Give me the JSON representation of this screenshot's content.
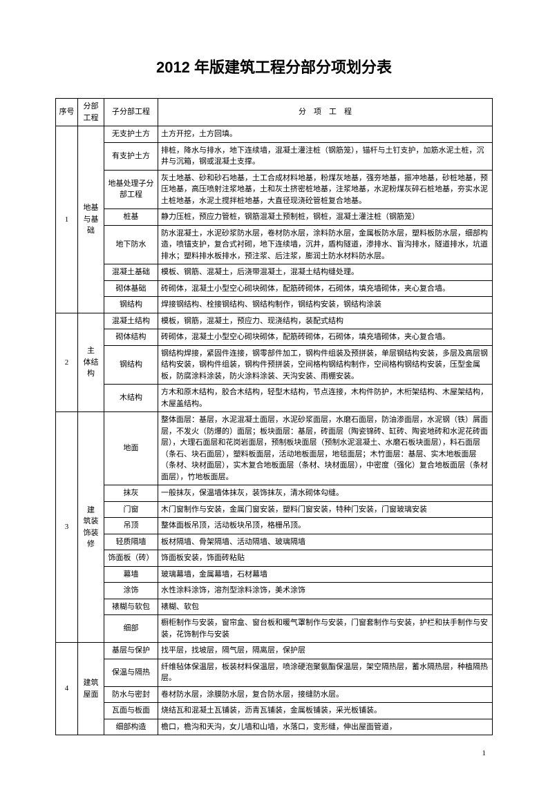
{
  "title": "2012 年版建筑工程分部分项划分表",
  "headers": {
    "seq": "序号",
    "division": "分部工程",
    "sub": "子分部工程",
    "item": "分　项　工　程"
  },
  "sections": [
    {
      "seq": "1",
      "division": "地基与基础",
      "rows": [
        {
          "sub": "无支护土方",
          "item": "土方开挖，土方回填。"
        },
        {
          "sub": "有支护土方",
          "item": "排桩，降水与排水，地下连续墙，混凝土灌注桩（钢筋笼），锚杆与土钉支护，加筋水泥土桩，沉井与沉箱，钢或混凝土支撑。"
        },
        {
          "sub": "地基处理子分部工程",
          "item": "灰土地基、砂和砂石地基，土工合成材料地基，粉煤灰地基，强夯地基，振冲地基，砂桩地基，预压地基，高压喷射注浆地基，土和灰土挤密桩地基，注浆地基，水泥粉煤灰碎石桩地基，夯实水泥土桩地基，水泥土搅拌桩地基，大直径现浇砼管桩复合地基。"
        },
        {
          "sub": "桩基",
          "item": "静力压桩，预应力管桩，钢筋混凝土预制桩，钢桩，混凝土灌注桩（钢筋笼）"
        },
        {
          "sub": "地下防水",
          "item": "防水混凝土，水泥砂浆防水层，卷材防水层，涂料防水层，金属板防水层，塑料板防水层，细部构造，喷锚支护，复合式衬砌，地下连续墙，沉井，盾构隧道，渗排水、盲沟排水，隧道排水，坑道排水；塑料排水板排水，预注浆、后注浆，膨润土防水材料防水层。"
        },
        {
          "sub": "混凝土基础",
          "item": "模板、钢筋、混凝土，后浇带混凝土，混凝土结构缝处理。"
        },
        {
          "sub": "砌体基础",
          "item": "砖砌体，混凝土小型空心砌块砌体，配筋砖砌体，石砌体，填充墙砌体，夹心复合墙。"
        },
        {
          "sub": "钢结构",
          "item": "焊接钢结构、栓接钢结构、钢结构制作，钢结构安装，钢结构涂装"
        }
      ]
    },
    {
      "seq": "2",
      "division": "主　体结构",
      "rows": [
        {
          "sub": "混凝土结构",
          "item": "模板，钢筋，混凝土，预应力、现浇结构，装配式结构"
        },
        {
          "sub": "砌体结构",
          "item": "砖砌体，混凝土小型空心砌块砌体，配筋砖砌体，石砌体，填充墙砌体，夹心复合墙。"
        },
        {
          "sub": "钢结构",
          "item": "钢结构焊接，紧固件连接，钢零部件加工，钢构件组装及预拼装，单层钢结构安装，多层及高层钢结构安装，钢构件组装，钢构件预拼装，空间格构钢结构制作，空间格构钢结构安装，压型金属板，防腐涂料涂装，防火涂料涂装、天沟安装、雨棚安装。"
        },
        {
          "sub": "木结构",
          "item": "方木和原木结构，胶合木结构，轻型木结构，节点连接，木构件防护，木桁架结构、木屋架结构，木屋盖结构。"
        }
      ]
    },
    {
      "seq": "3",
      "division": "建　筑装　饰装　修",
      "rows": [
        {
          "sub": "地面",
          "item": "整体面层：基层，水泥混凝土面层，水泥砂浆面层，水磨石面层，防油渗面层，水泥钢（铁）屑面层，不发火（防爆的）面层；板块面层：基层，砖面层（陶瓷锦砖、缸砖、陶瓷地砖和水泥花砖面层），大理石面层和花岗岩面层，预制板块面层（预制水泥混凝土、水磨石板块面层），料石面层（条石、块石面层），塑料板面层，活动地板面层，地毯面层；木竹面层：基层、实木地板面层（条材、块材面层），实木复合地板面层（条材、块材面层），中密度（强化）复合地板面层（条材面层），竹地板面层。"
        },
        {
          "sub": "抹灰",
          "item": "一般抹灰，保温墙体抹灰，装饰抹灰，清水砌体勾缝。"
        },
        {
          "sub": "门窗",
          "item": "木门窗制作与安装，金属门窗安装，塑料门窗安装，特种门安装，门窗玻璃安装"
        },
        {
          "sub": "吊顶",
          "item": "整体面板吊顶，活动板块吊顶，格栅吊顶。"
        },
        {
          "sub": "轻质隔墙",
          "item": "板材隔墙、骨架隔墙、活动隔墙、玻璃隔墙"
        },
        {
          "sub": "饰面板（砖）",
          "item": "饰面板安装，饰面砖粘贴"
        },
        {
          "sub": "幕墙",
          "item": "玻璃幕墙，金属幕墙，石材幕墙"
        },
        {
          "sub": "涂饰",
          "item": "水性涂料涂饰，溶剂型涂料涂饰，美术涂饰"
        },
        {
          "sub": "裱糊与软包",
          "item": "裱糊、软包"
        },
        {
          "sub": "细部",
          "item": "橱柜制作与安装，窗帘盒、窗台板和暖气罩制作与安装，门窗套制作与安装，护栏和扶手制作与安装，花饰制作与安装"
        }
      ]
    },
    {
      "seq": "4",
      "division": "建筑屋面",
      "rows": [
        {
          "sub": "基层与保护",
          "item": "找平层，找坡层，隔气层，隔离层，保护层"
        },
        {
          "sub": "保温与隔热",
          "item": "纤维毡体保温层，板装材料保温层，喷涂硬泡聚氨酯保温层，架空隔热层，蓄水隔热层，种植隔热层。"
        },
        {
          "sub": "防水与密封",
          "item": "卷材防水层，涂膜防水层，复合防水层，接缝防水层。"
        },
        {
          "sub": "瓦面与板面",
          "item": "烧结瓦和混凝土瓦铺装，沥青瓦铺装，金属板铺装，采光板铺装。"
        },
        {
          "sub": "细部构造",
          "item": "檐口，檐沟和天沟，女儿墙和山墙，水落口，变形缝，伸出屋面管道，"
        }
      ]
    }
  ],
  "pageNumber": "1"
}
